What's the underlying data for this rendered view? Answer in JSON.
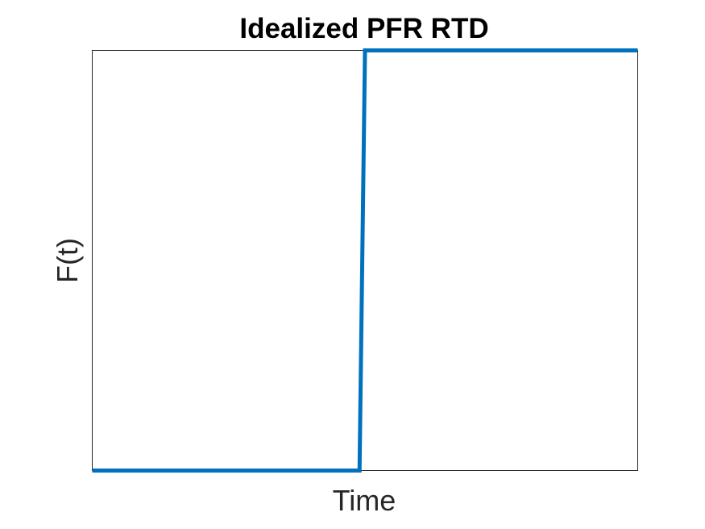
{
  "chart_data": {
    "type": "line",
    "title": "Idealized PFR RTD",
    "xlabel": "Time",
    "ylabel": "F(t)",
    "xlim": [
      0,
      1
    ],
    "ylim": [
      0,
      1
    ],
    "grid": false,
    "x_ticks_shown": false,
    "y_ticks_shown": false,
    "series": [
      {
        "color": "#0072BD",
        "x": [
          0,
          0.49,
          0.5,
          1.0
        ],
        "y": [
          0,
          0,
          1,
          1
        ]
      }
    ]
  }
}
